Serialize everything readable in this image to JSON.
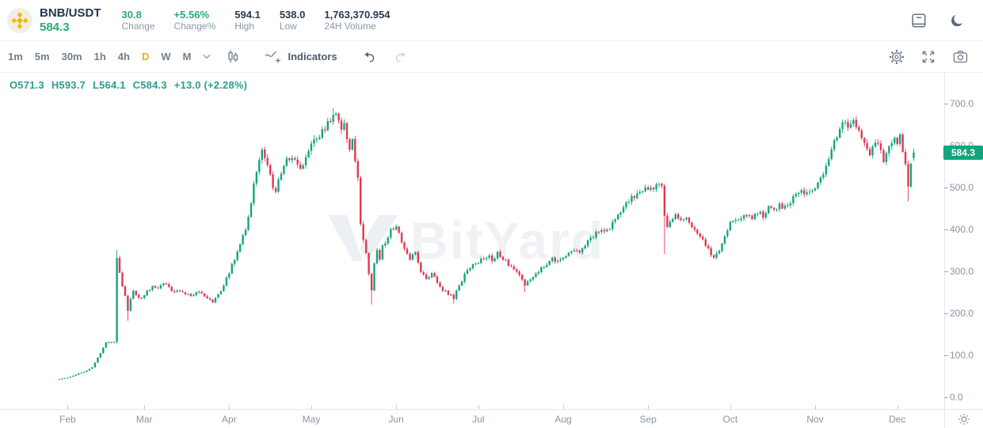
{
  "header": {
    "pair": "BNB/USDT",
    "last_price": "584.3",
    "stats": [
      {
        "value": "30.8",
        "label": "Change",
        "positive": true
      },
      {
        "value": "+5.56%",
        "label": "Change%",
        "positive": true
      },
      {
        "value": "594.1",
        "label": "High",
        "positive": false
      },
      {
        "value": "538.0",
        "label": "Low",
        "positive": false
      },
      {
        "value": "1,763,370.954",
        "label": "24H Volume",
        "positive": false
      }
    ]
  },
  "toolbar": {
    "timeframes": [
      "1m",
      "5m",
      "30m",
      "1h",
      "4h",
      "D",
      "W",
      "M"
    ],
    "active_timeframe": "D",
    "indicators_label": "Indicators"
  },
  "legend": {
    "o": "O571.3",
    "h": "H593.7",
    "l": "L564.1",
    "c": "C584.3",
    "chg": "+13.0 (+2.28%)"
  },
  "watermark": "BitYard",
  "icons": {
    "bnb_logo": "gold-diamond-circle",
    "orderbook_panel": "▤",
    "dark_mode_moon": "☾",
    "chevron_down": "⌄",
    "candle_style": "candlestick-glyph",
    "indicators": "wave-plus",
    "undo": "↶",
    "redo": "↷",
    "settings_gear": "⚙",
    "fullscreen": "⛶",
    "screenshot_camera": "camera-glyph",
    "price_scale_settings": "☼"
  },
  "colors": {
    "up": "#10A67C",
    "down": "#E03852",
    "accent_orange": "#F5A623",
    "legend_teal": "#2A9E91",
    "text_green": "#26AC78",
    "badge_bg": "#10A67C",
    "axis_text": "#8A94A5",
    "brand_gold": "#F0B90B"
  },
  "chart_data": {
    "type": "candlestick",
    "symbol": "BNB/USDT",
    "interval": "1D",
    "title": "BNB/USDT daily candlestick chart",
    "grid": false,
    "legend_position": "top-left-overlay",
    "y_axis": {
      "side": "right",
      "ticks": [
        700,
        500,
        400,
        300,
        200,
        100,
        0,
        600
      ],
      "tick_values": [
        700,
        600,
        500,
        400,
        300,
        200,
        100,
        0
      ],
      "range": [
        0,
        740
      ],
      "format": "0.0"
    },
    "x_axis": {
      "months": [
        {
          "label": "Feb",
          "day": 3
        },
        {
          "label": "Mar",
          "day": 31
        },
        {
          "label": "Apr",
          "day": 62
        },
        {
          "label": "May",
          "day": 92
        },
        {
          "label": "Jun",
          "day": 123
        },
        {
          "label": "Jul",
          "day": 153
        },
        {
          "label": "Aug",
          "day": 184
        },
        {
          "label": "Sep",
          "day": 215
        },
        {
          "label": "Oct",
          "day": 245
        },
        {
          "label": "Nov",
          "day": 276
        },
        {
          "label": "Dec",
          "day": 306
        }
      ]
    },
    "days_total": 313,
    "last_price": 584.3,
    "last_price_label": "584.3",
    "ohlc": {
      "open": 571.3,
      "high": 593.7,
      "low": 564.1,
      "close": 584.3,
      "change": 13.0,
      "change_pct": 2.28
    },
    "anchors": [
      [
        0,
        44
      ],
      [
        3,
        48
      ],
      [
        6,
        54
      ],
      [
        9,
        62
      ],
      [
        12,
        72
      ],
      [
        14,
        95
      ],
      [
        16,
        118
      ],
      [
        17,
        132
      ],
      [
        20,
        133
      ],
      [
        21,
        330
      ],
      [
        22,
        300
      ],
      [
        23,
        268
      ],
      [
        24,
        240
      ],
      [
        25,
        210
      ],
      [
        26,
        238
      ],
      [
        27,
        255
      ],
      [
        28,
        245
      ],
      [
        30,
        238
      ],
      [
        32,
        252
      ],
      [
        34,
        268
      ],
      [
        36,
        258
      ],
      [
        38,
        272
      ],
      [
        40,
        262
      ],
      [
        42,
        250
      ],
      [
        44,
        256
      ],
      [
        46,
        248
      ],
      [
        48,
        242
      ],
      [
        50,
        252
      ],
      [
        52,
        246
      ],
      [
        54,
        238
      ],
      [
        56,
        230
      ],
      [
        58,
        244
      ],
      [
        60,
        268
      ],
      [
        62,
        300
      ],
      [
        64,
        330
      ],
      [
        66,
        365
      ],
      [
        68,
        400
      ],
      [
        70,
        470
      ],
      [
        72,
        540
      ],
      [
        73,
        575
      ],
      [
        74,
        590
      ],
      [
        75,
        570
      ],
      [
        76,
        555
      ],
      [
        78,
        505
      ],
      [
        79,
        490
      ],
      [
        80,
        515
      ],
      [
        82,
        555
      ],
      [
        84,
        572
      ],
      [
        86,
        560
      ],
      [
        88,
        548
      ],
      [
        90,
        565
      ],
      [
        92,
        600
      ],
      [
        94,
        620
      ],
      [
        96,
        635
      ],
      [
        98,
        650
      ],
      [
        100,
        670
      ],
      [
        101,
        678
      ],
      [
        102,
        660
      ],
      [
        103,
        645
      ],
      [
        104,
        655
      ],
      [
        105,
        625
      ],
      [
        106,
        590
      ],
      [
        107,
        610
      ],
      [
        108,
        565
      ],
      [
        109,
        520
      ],
      [
        110,
        420
      ],
      [
        111,
        380
      ],
      [
        112,
        340
      ],
      [
        113,
        295
      ],
      [
        114,
        258
      ],
      [
        115,
        318
      ],
      [
        116,
        352
      ],
      [
        117,
        332
      ],
      [
        118,
        360
      ],
      [
        119,
        372
      ],
      [
        121,
        400
      ],
      [
        123,
        408
      ],
      [
        124,
        388
      ],
      [
        126,
        352
      ],
      [
        128,
        325
      ],
      [
        130,
        350
      ],
      [
        132,
        298
      ],
      [
        134,
        282
      ],
      [
        136,
        295
      ],
      [
        138,
        275
      ],
      [
        140,
        258
      ],
      [
        142,
        248
      ],
      [
        144,
        238
      ],
      [
        146,
        268
      ],
      [
        148,
        292
      ],
      [
        150,
        308
      ],
      [
        152,
        320
      ],
      [
        154,
        330
      ],
      [
        156,
        338
      ],
      [
        158,
        330
      ],
      [
        160,
        342
      ],
      [
        162,
        333
      ],
      [
        164,
        318
      ],
      [
        166,
        305
      ],
      [
        168,
        295
      ],
      [
        170,
        268
      ],
      [
        172,
        278
      ],
      [
        174,
        295
      ],
      [
        176,
        308
      ],
      [
        178,
        320
      ],
      [
        180,
        330
      ],
      [
        182,
        322
      ],
      [
        184,
        332
      ],
      [
        186,
        342
      ],
      [
        188,
        355
      ],
      [
        190,
        350
      ],
      [
        192,
        362
      ],
      [
        194,
        378
      ],
      [
        196,
        392
      ],
      [
        198,
        405
      ],
      [
        200,
        400
      ],
      [
        202,
        415
      ],
      [
        204,
        432
      ],
      [
        206,
        450
      ],
      [
        208,
        470
      ],
      [
        210,
        482
      ],
      [
        212,
        492
      ],
      [
        214,
        500
      ],
      [
        216,
        496
      ],
      [
        218,
        508
      ],
      [
        219,
        514
      ],
      [
        220,
        502
      ],
      [
        221,
        430
      ],
      [
        222,
        410
      ],
      [
        223,
        422
      ],
      [
        225,
        435
      ],
      [
        227,
        418
      ],
      [
        229,
        428
      ],
      [
        231,
        410
      ],
      [
        233,
        392
      ],
      [
        235,
        373
      ],
      [
        237,
        352
      ],
      [
        239,
        336
      ],
      [
        241,
        355
      ],
      [
        243,
        385
      ],
      [
        245,
        418
      ],
      [
        247,
        430
      ],
      [
        249,
        422
      ],
      [
        251,
        435
      ],
      [
        253,
        428
      ],
      [
        255,
        445
      ],
      [
        257,
        435
      ],
      [
        259,
        450
      ],
      [
        261,
        444
      ],
      [
        263,
        460
      ],
      [
        265,
        454
      ],
      [
        267,
        470
      ],
      [
        269,
        480
      ],
      [
        271,
        490
      ],
      [
        273,
        484
      ],
      [
        275,
        494
      ],
      [
        276,
        505
      ],
      [
        278,
        525
      ],
      [
        280,
        552
      ],
      [
        282,
        588
      ],
      [
        284,
        628
      ],
      [
        286,
        650
      ],
      [
        287,
        660
      ],
      [
        288,
        652
      ],
      [
        289,
        643
      ],
      [
        290,
        658
      ],
      [
        291,
        645
      ],
      [
        292,
        630
      ],
      [
        293,
        614
      ],
      [
        294,
        600
      ],
      [
        295,
        585
      ],
      [
        296,
        574
      ],
      [
        297,
        594
      ],
      [
        298,
        608
      ],
      [
        299,
        598
      ],
      [
        300,
        584
      ],
      [
        301,
        565
      ],
      [
        302,
        578
      ],
      [
        303,
        594
      ],
      [
        304,
        614
      ],
      [
        305,
        624
      ],
      [
        306,
        614
      ],
      [
        307,
        626
      ],
      [
        308,
        594
      ],
      [
        309,
        550
      ],
      [
        310,
        505
      ],
      [
        311,
        558
      ],
      [
        312,
        584
      ]
    ],
    "wick_events": [
      {
        "day": 21,
        "side": "high",
        "price": 352
      },
      {
        "day": 25,
        "side": "low",
        "price": 183
      },
      {
        "day": 100,
        "side": "high",
        "price": 690
      },
      {
        "day": 114,
        "side": "low",
        "price": 222
      },
      {
        "day": 144,
        "side": "low",
        "price": 224
      },
      {
        "day": 170,
        "side": "low",
        "price": 252
      },
      {
        "day": 221,
        "side": "low",
        "price": 342
      },
      {
        "day": 310,
        "side": "low",
        "price": 468
      }
    ]
  }
}
